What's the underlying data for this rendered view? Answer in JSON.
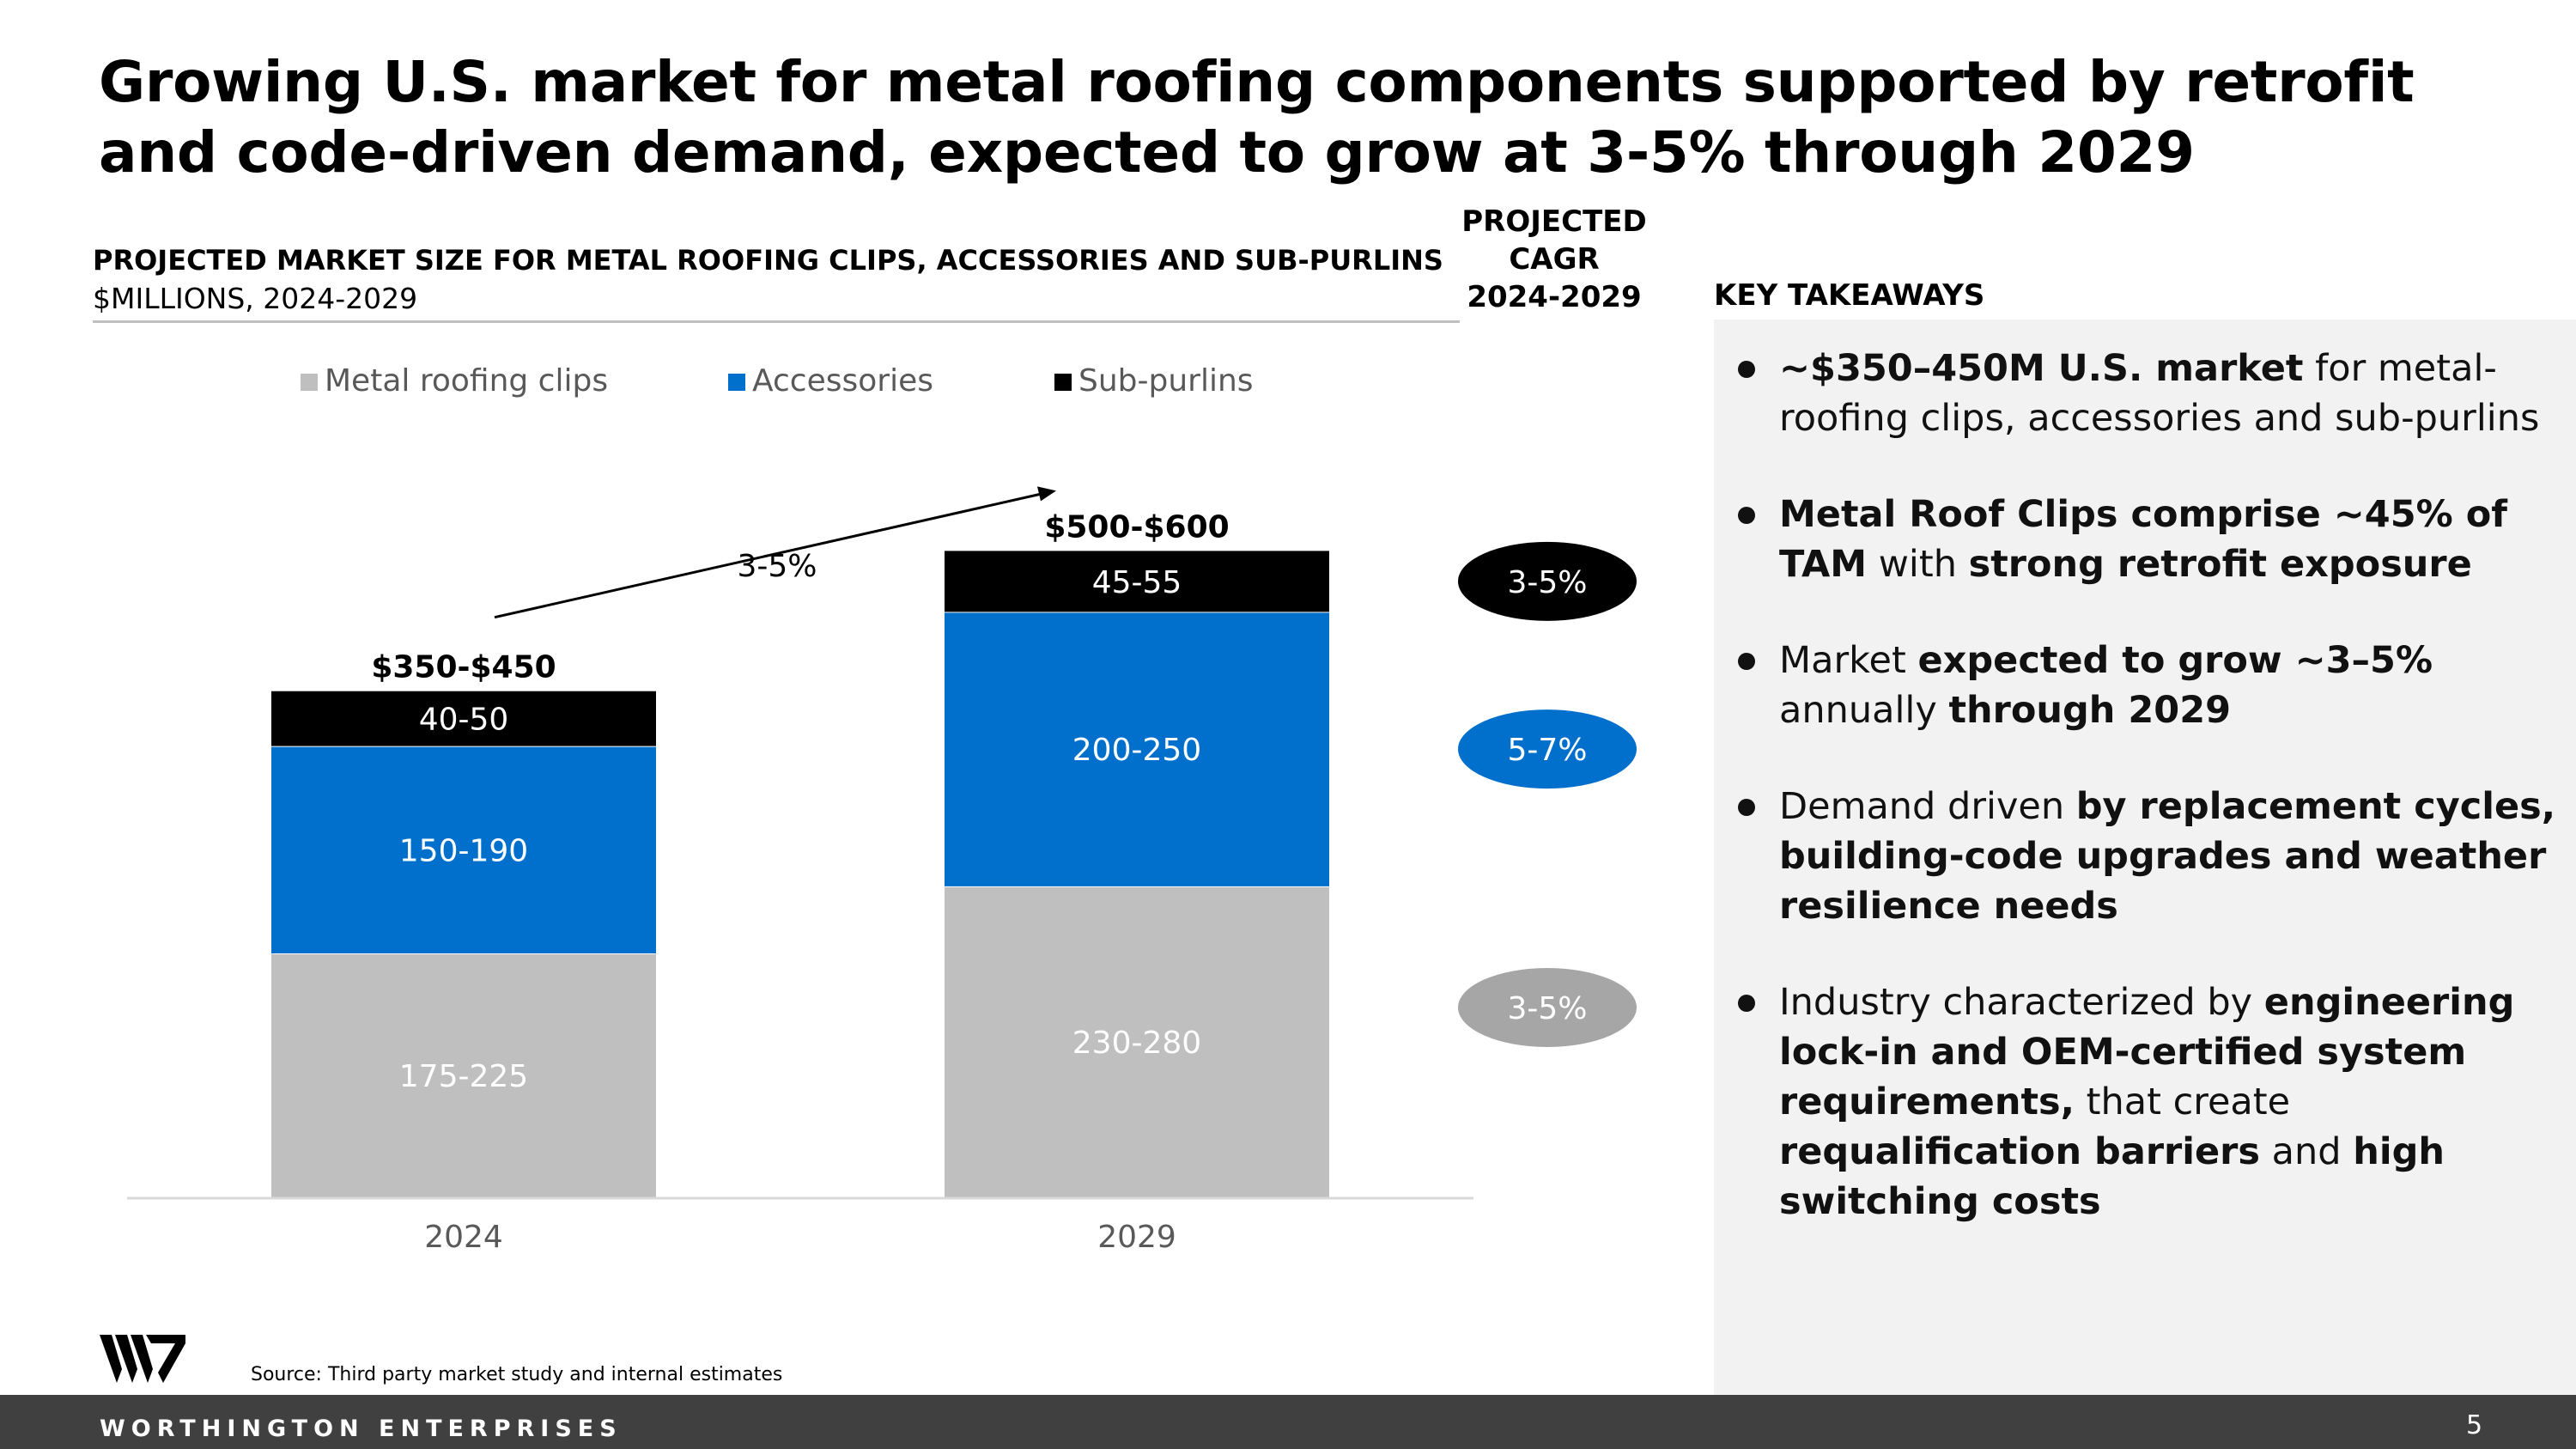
{
  "title": "Growing U.S. market for metal roofing components supported by retrofit and code-driven demand, expected to grow at 3-5% through 2029",
  "chart_heading": "PROJECTED MARKET SIZE FOR METAL ROOFING CLIPS, ACCESSORIES AND SUB-PURLINS",
  "chart_subheading": "$MILLIONS, 2024-2029",
  "cagr_heading_lines": [
    "PROJECTED",
    "CAGR",
    "2024-2029"
  ],
  "chart_data": {
    "type": "bar",
    "stacked": true,
    "title": "PROJECTED MARKET SIZE FOR METAL ROOFING CLIPS, ACCESSORIES AND SUB-PURLINS",
    "ylabel": "$MILLIONS, 2024-2029",
    "categories": [
      "2024",
      "2029"
    ],
    "legend_position": "top",
    "series": [
      {
        "name": "Metal roofing clips",
        "color": "#bfbfbf",
        "labels": [
          "175-225",
          "230-280"
        ],
        "values": [
          200,
          255
        ]
      },
      {
        "name": "Accessories",
        "color": "#0070cc",
        "labels": [
          "150-190",
          "200-250"
        ],
        "values": [
          170,
          225
        ]
      },
      {
        "name": "Sub-purlins",
        "color": "#000000",
        "labels": [
          "40-50",
          "45-55"
        ],
        "values": [
          45,
          50
        ]
      }
    ],
    "totals": [
      "$350-$450",
      "$500-$600"
    ],
    "growth_annotation": "3-5%",
    "cagr": [
      {
        "series": "Sub-purlins",
        "value": "3-5%",
        "color": "#000000"
      },
      {
        "series": "Accessories",
        "value": "5-7%",
        "color": "#0070cc"
      },
      {
        "series": "Metal roofing clips",
        "value": "3-5%",
        "color": "#a6a6a6"
      }
    ]
  },
  "takeaways": {
    "heading": "KEY TAKEAWAYS",
    "items": [
      [
        {
          "t": "~$350–450M U.S. market",
          "b": true
        },
        {
          "t": " for metal-roofing clips, accessories and sub-purlins",
          "b": false
        }
      ],
      [
        {
          "t": "Metal Roof Clips comprise ~45% of TAM",
          "b": true
        },
        {
          "t": " with ",
          "b": false
        },
        {
          "t": "strong retrofit exposure",
          "b": true
        }
      ],
      [
        {
          "t": "Market ",
          "b": false
        },
        {
          "t": "expected to grow ~3–5%",
          "b": true
        },
        {
          "t": " annually ",
          "b": false
        },
        {
          "t": "through 2029",
          "b": true
        }
      ],
      [
        {
          "t": "Demand driven ",
          "b": false
        },
        {
          "t": "by replacement cycles, building-code upgrades and weather resilience needs",
          "b": true
        }
      ],
      [
        {
          "t": "Industry characterized by ",
          "b": false
        },
        {
          "t": "engineering lock-in and OEM-certified system requirements,",
          "b": true
        },
        {
          "t": " that create ",
          "b": false
        },
        {
          "t": "requalification barriers",
          "b": true
        },
        {
          "t": " and ",
          "b": false
        },
        {
          "t": "high switching costs",
          "b": true
        }
      ]
    ]
  },
  "footer": {
    "source": "Source: Third party market study and internal estimates",
    "brand": "WORTHINGTON ENTERPRISES",
    "page": "5"
  },
  "colors": {
    "accent_blue": "#0070cc",
    "gray": "#bfbfbf",
    "footer": "#404040",
    "panel": "#f2f2f2"
  }
}
